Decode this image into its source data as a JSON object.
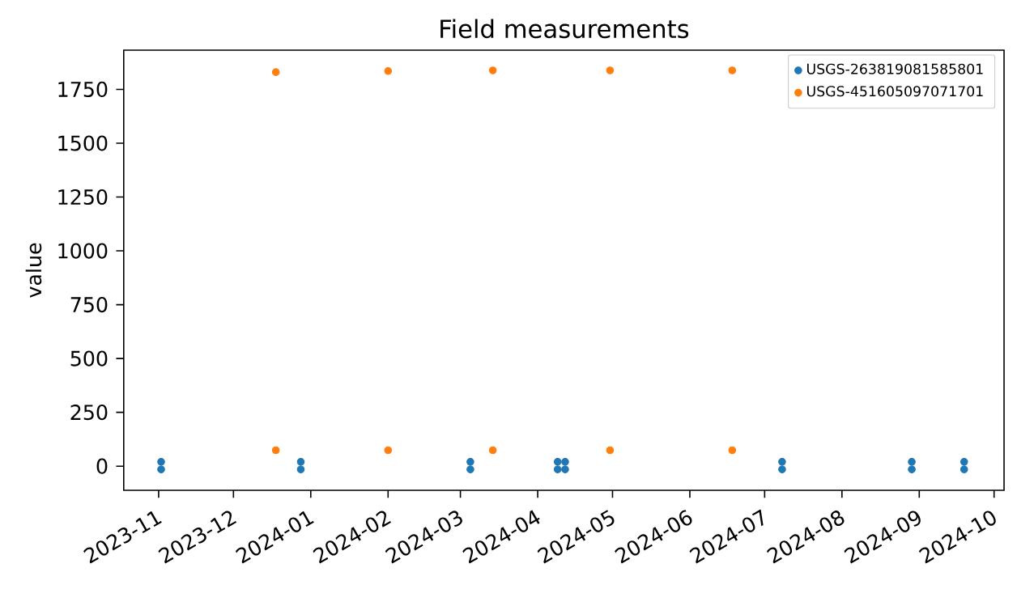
{
  "chart_data": {
    "type": "scatter",
    "title": "Field measurements",
    "ylabel": "value",
    "xlim": [
      "2023-10-18",
      "2024-10-05"
    ],
    "ylim": [
      -112,
      1932
    ],
    "xticks": [
      "2023-11",
      "2023-12",
      "2024-01",
      "2024-02",
      "2024-03",
      "2024-04",
      "2024-05",
      "2024-06",
      "2024-07",
      "2024-08",
      "2024-09",
      "2024-10"
    ],
    "yticks": [
      0,
      250,
      500,
      750,
      1000,
      1250,
      1500,
      1750
    ],
    "legend": "top right",
    "grid": false,
    "series": [
      {
        "name": "USGS-263819081585801",
        "color": "#1f77b4",
        "x": [
          "2023-11-02",
          "2023-11-02",
          "2023-12-28",
          "2023-12-28",
          "2024-03-05",
          "2024-03-05",
          "2024-04-09",
          "2024-04-09",
          "2024-04-12",
          "2024-04-12",
          "2024-07-08",
          "2024-07-08",
          "2024-08-29",
          "2024-08-29",
          "2024-09-19",
          "2024-09-19"
        ],
        "values": [
          20,
          -15,
          20,
          -15,
          20,
          -15,
          20,
          -15,
          20,
          -15,
          20,
          -15,
          20,
          -15,
          20,
          -15
        ]
      },
      {
        "name": "USGS-451605097071701",
        "color": "#ff7f0e",
        "x": [
          "2023-12-18",
          "2023-12-18",
          "2024-02-01",
          "2024-02-01",
          "2024-03-14",
          "2024-03-14",
          "2024-04-30",
          "2024-04-30",
          "2024-06-18",
          "2024-06-18"
        ],
        "values": [
          74,
          1830,
          74,
          1835,
          74,
          1838,
          74,
          1838,
          74,
          1838
        ]
      }
    ]
  }
}
